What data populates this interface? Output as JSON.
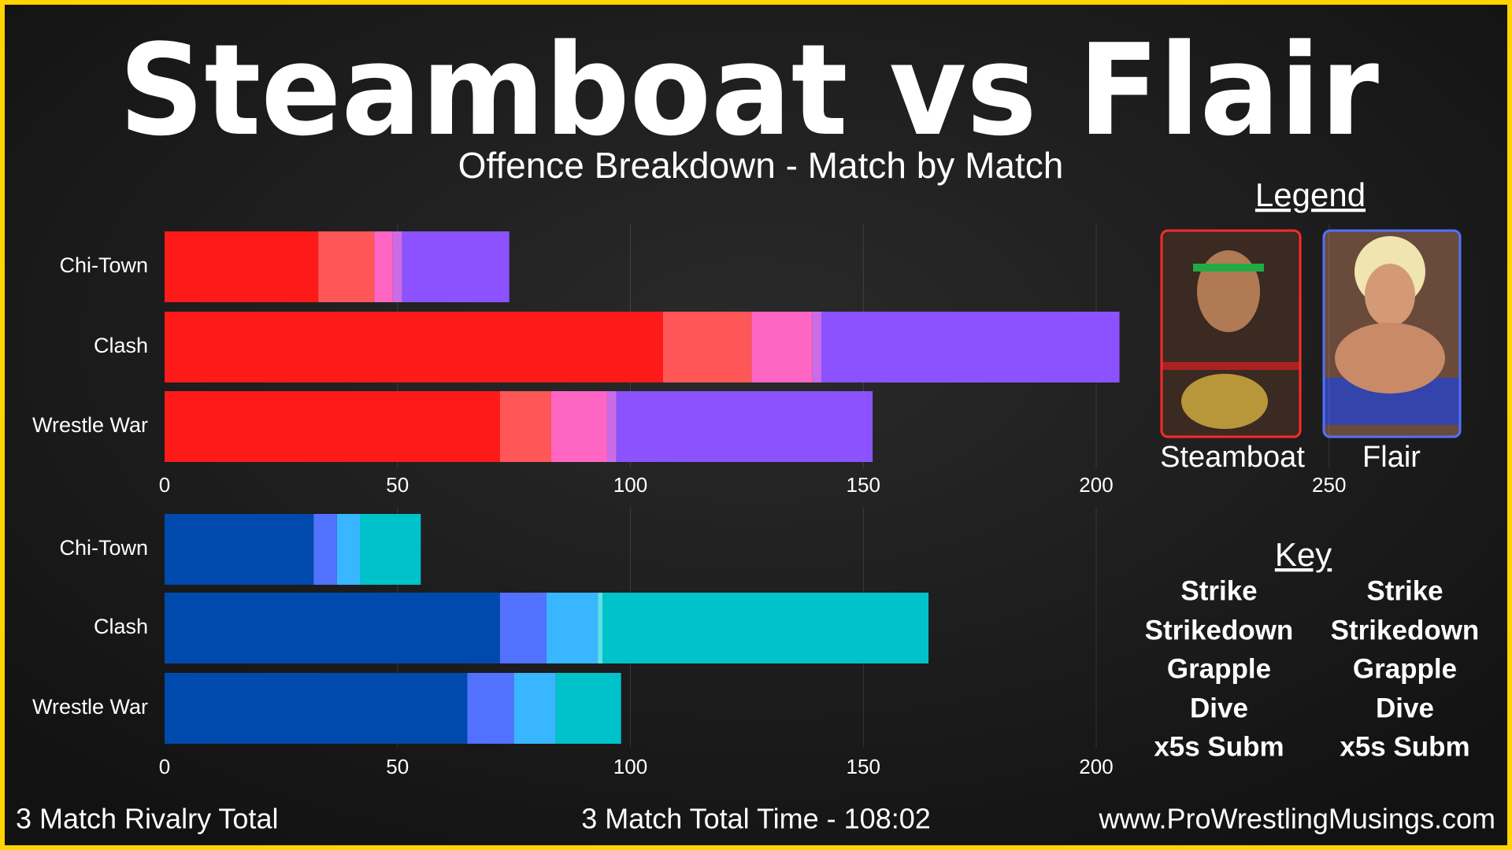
{
  "header": {
    "title": "Steamboat vs Flair",
    "subtitle": "Offence Breakdown - Match by Match"
  },
  "legend_title": "Legend",
  "key_title": "Key",
  "footer": {
    "left": "3 Match Rivalry Total",
    "center": "3 Match Total Time - 108:02",
    "right": "www.ProWrestlingMusings.com"
  },
  "chart_data": [
    {
      "type": "bar",
      "orientation": "horizontal",
      "stacked": true,
      "label": "Steamboat",
      "label_color": "#ff2a2a",
      "frame_color": "#ff2a2a",
      "categories": [
        "Chi-Town",
        "Clash",
        "Wrestle War"
      ],
      "xlim": [
        0,
        250
      ],
      "xticks": [
        0,
        50,
        100,
        150,
        200,
        250
      ],
      "grid": true,
      "series": [
        {
          "name": "Strike",
          "color": "#ff1a1a",
          "values": [
            33,
            107,
            72
          ]
        },
        {
          "name": "Strikedown",
          "color": "#ff5757",
          "values": [
            12,
            19,
            11
          ]
        },
        {
          "name": "Grapple",
          "color": "#ff66c4",
          "values": [
            4,
            13,
            12
          ]
        },
        {
          "name": "Dive",
          "color": "#cb6ce6",
          "values": [
            2,
            2,
            2
          ]
        },
        {
          "name": "x5s Subm",
          "color": "#8c52ff",
          "values": [
            23,
            64,
            55
          ]
        }
      ]
    },
    {
      "type": "bar",
      "orientation": "horizontal",
      "stacked": true,
      "label": "Flair",
      "label_color": "#5271ff",
      "frame_color": "#5271ff",
      "categories": [
        "Chi-Town",
        "Clash",
        "Wrestle War"
      ],
      "xlim": [
        0,
        250
      ],
      "xticks": [
        0,
        50,
        100,
        150,
        200
      ],
      "grid": true,
      "series": [
        {
          "name": "Strike",
          "color": "#004aad",
          "values": [
            32,
            72,
            65
          ]
        },
        {
          "name": "Strikedown",
          "color": "#5271ff",
          "values": [
            5,
            10,
            10
          ]
        },
        {
          "name": "Grapple",
          "color": "#38b6ff",
          "values": [
            5,
            11,
            9
          ]
        },
        {
          "name": "Dive",
          "color": "#5ce1e6",
          "values": [
            0,
            1,
            0
          ]
        },
        {
          "name": "x5s Subm",
          "color": "#00c2cb",
          "values": [
            13,
            70,
            14
          ]
        }
      ]
    }
  ]
}
